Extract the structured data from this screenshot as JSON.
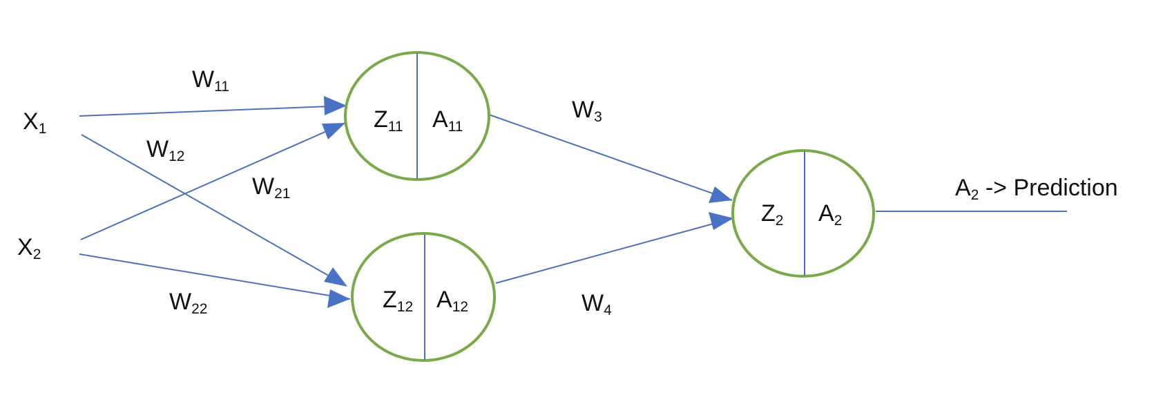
{
  "colors": {
    "edge": "#4a6fbf",
    "arrow": "#4a72c4",
    "neuron_ring": "#79aa4a"
  },
  "inputs": [
    {
      "main": "X",
      "sub": "1"
    },
    {
      "main": "X",
      "sub": "2"
    }
  ],
  "weights": {
    "w11": {
      "main": "W",
      "sub": "11"
    },
    "w12": {
      "main": "W",
      "sub": "12"
    },
    "w21": {
      "main": "W",
      "sub": "21"
    },
    "w22": {
      "main": "W",
      "sub": "22"
    },
    "w3": {
      "main": "W",
      "sub": "3"
    },
    "w4": {
      "main": "W",
      "sub": "4"
    }
  },
  "neurons": {
    "h1": {
      "z": {
        "main": "Z",
        "sub": "11"
      },
      "a": {
        "main": "A",
        "sub": "11"
      }
    },
    "h2": {
      "z": {
        "main": "Z",
        "sub": "12"
      },
      "a": {
        "main": "A",
        "sub": "12"
      }
    },
    "out": {
      "z": {
        "main": "Z",
        "sub": "2"
      },
      "a": {
        "main": "A",
        "sub": "2"
      }
    }
  },
  "output": {
    "main": "A",
    "sub": "2",
    "suffix": " -> Prediction"
  }
}
